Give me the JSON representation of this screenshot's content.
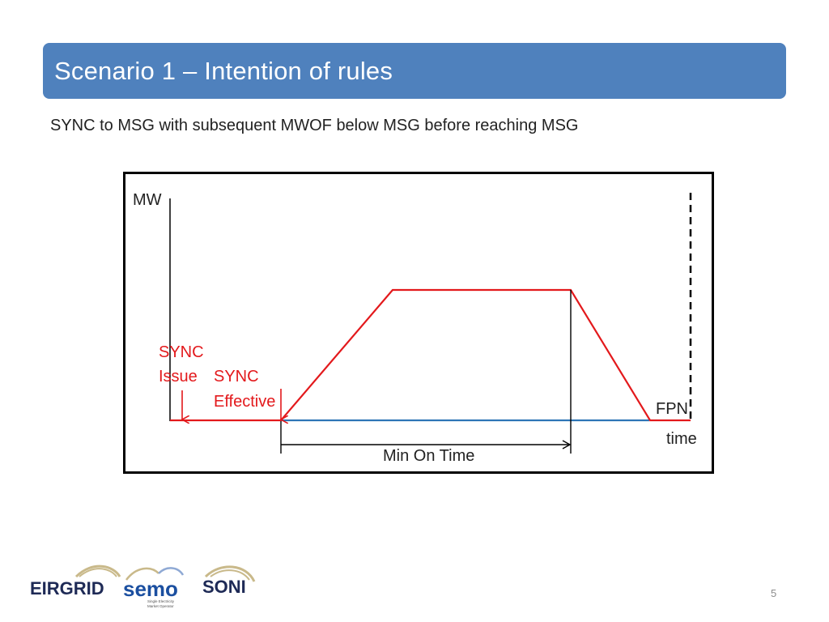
{
  "slide": {
    "title": "Scenario 1 – Intention of rules",
    "subtitle": "SYNC to MSG with subsequent MWOF below MSG before reaching MSG",
    "page_number": "5"
  },
  "diagram": {
    "y_axis_label": "MW",
    "x_axis_label": "time",
    "fpn_label": "FPN",
    "sync_issue_label": [
      "SYNC",
      "Issue"
    ],
    "sync_effective_label": [
      "SYNC",
      "Effective"
    ],
    "min_on_time_label": "Min On Time",
    "colors": {
      "profile": "#e3191c",
      "fpn": "#2e75b6",
      "frame": "#000000"
    }
  },
  "logos": {
    "eirgrid": "EIRGRID",
    "semo": "semo",
    "semo_tagline": [
      "Single Electricity",
      "Market Operator"
    ],
    "soni": "SONI"
  }
}
